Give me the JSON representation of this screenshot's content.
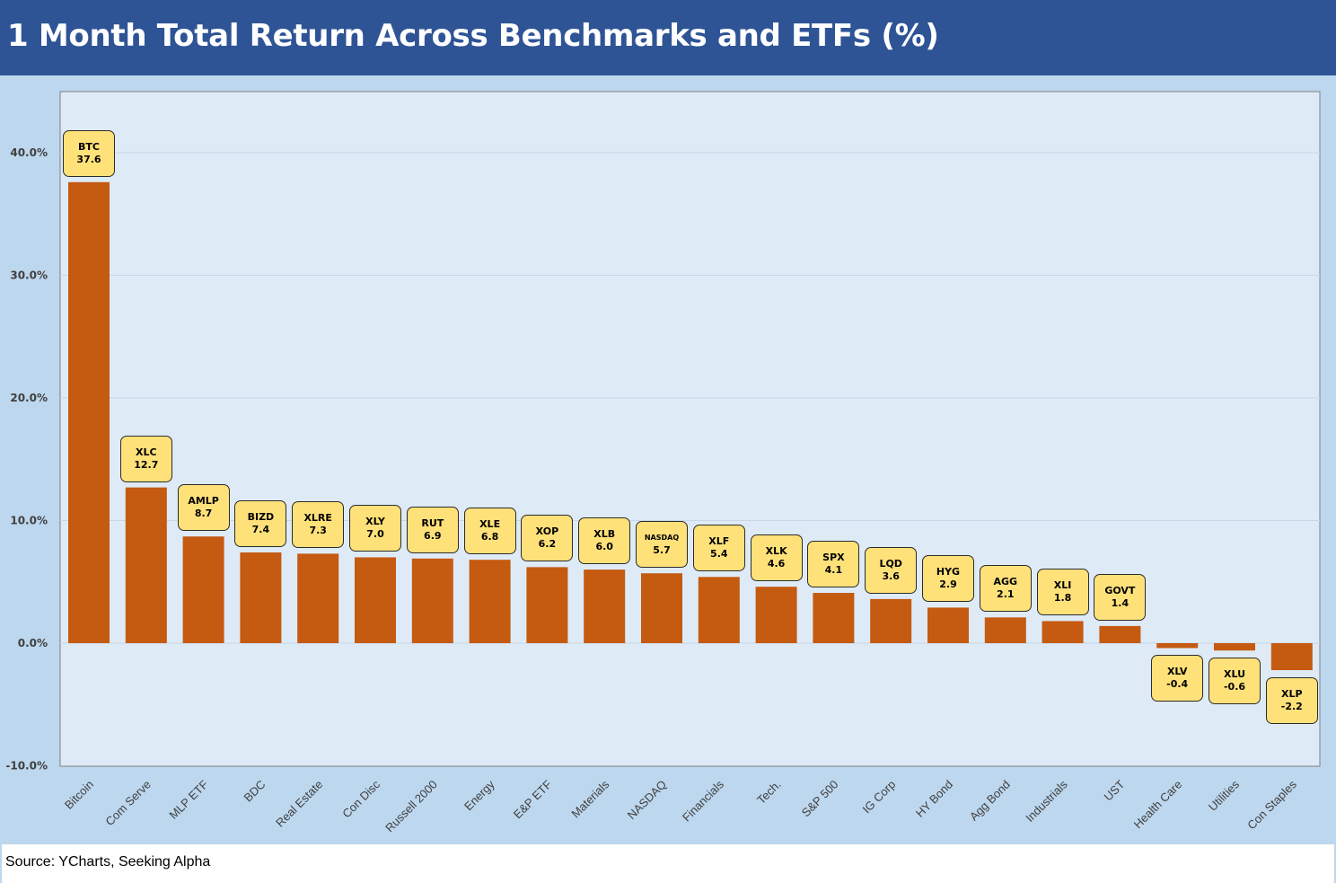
{
  "title": "1 Month Total Return Across Benchmarks and ETFs (%)",
  "source": "Source: YCharts, Seeking Alpha",
  "colors": {
    "title_bg": "#2f5496",
    "outer_bg": "#bdd7ee",
    "plot_bg": "#deebf7",
    "bar": "#c55a11",
    "label_box": "#ffe17a"
  },
  "chart_data": {
    "type": "bar",
    "title": "1 Month Total Return Across Benchmarks and ETFs (%)",
    "xlabel": "",
    "ylabel": "",
    "ylim": [
      -10,
      45
    ],
    "yticks": [
      -10,
      0,
      10,
      20,
      30,
      40
    ],
    "ytick_labels": [
      "-10.0%",
      "0.0%",
      "10.0%",
      "20.0%",
      "30.0%",
      "40.0%"
    ],
    "grid": true,
    "legend": "none",
    "categories": [
      "Bitcoin",
      "Com Serve",
      "MLP ETF",
      "BDC",
      "Real Estate",
      "Con Disc",
      "Russell 2000",
      "Energy",
      "E&P ETF",
      "Materials",
      "NASDAQ",
      "Financials",
      "Tech.",
      "S&P 500",
      "IG Corp",
      "HY Bond",
      "Agg Bond",
      "Industrials",
      "UST",
      "Health Care",
      "Utilities",
      "Con Staples"
    ],
    "tickers": [
      "BTC",
      "XLC",
      "AMLP",
      "BIZD",
      "XLRE",
      "XLY",
      "RUT",
      "XLE",
      "XOP",
      "XLB",
      "NASDAQ",
      "XLF",
      "XLK",
      "SPX",
      "LQD",
      "HYG",
      "AGG",
      "XLI",
      "GOVT",
      "XLV",
      "XLU",
      "XLP"
    ],
    "values": [
      37.6,
      12.7,
      8.7,
      7.4,
      7.3,
      7.0,
      6.9,
      6.8,
      6.2,
      6.0,
      5.7,
      5.4,
      4.6,
      4.1,
      3.6,
      2.9,
      2.1,
      1.8,
      1.4,
      -0.4,
      -0.6,
      -2.2
    ],
    "value_labels": [
      "37.6",
      "12.7",
      "8.7",
      "7.4",
      "7.3",
      "7.0",
      "6.9",
      "6.8",
      "6.2",
      "6.0",
      "5.7",
      "5.4",
      "4.6",
      "4.1",
      "3.6",
      "2.9",
      "2.1",
      "1.8",
      "1.4",
      "-0.4",
      "-0.6",
      "-2.2"
    ]
  }
}
